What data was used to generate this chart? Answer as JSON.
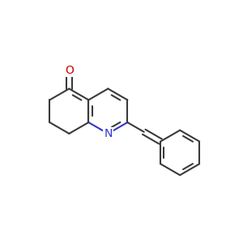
{
  "bg_color": "#ffffff",
  "bond_color": "#3a3a3a",
  "nitrogen_color": "#3333cc",
  "oxygen_color": "#cc0000",
  "bond_width": 1.5,
  "font_size_atom": 10
}
